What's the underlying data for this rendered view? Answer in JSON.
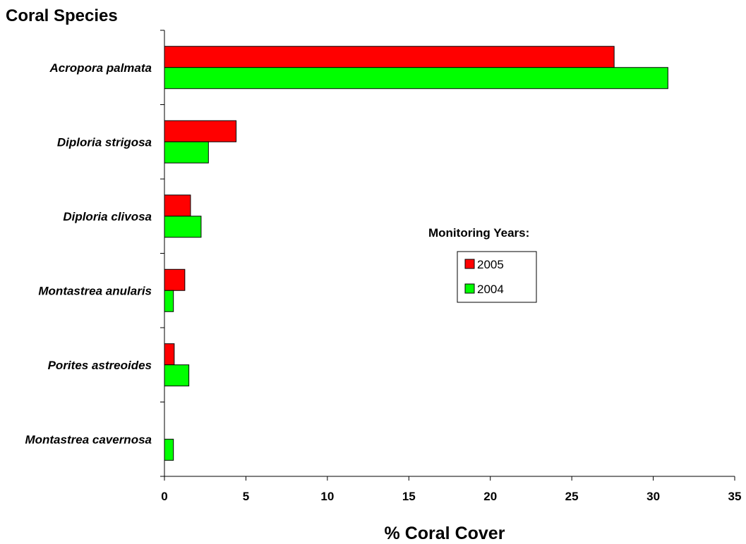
{
  "chart_data": {
    "type": "bar",
    "orientation": "horizontal",
    "ylabel": "Coral Species",
    "xlabel": "% Coral Cover",
    "categories": [
      "Acropora palmata",
      "Diploria strigosa",
      "Diploria clivosa",
      "Montastrea anularis",
      "Porites astreoides",
      "Montastrea cavernosa"
    ],
    "series": [
      {
        "name": "2005",
        "color": "#ff0000",
        "values": [
          27.6,
          4.4,
          1.6,
          1.25,
          0.6,
          0
        ]
      },
      {
        "name": "2004",
        "color": "#00ff00",
        "values": [
          30.9,
          2.7,
          2.25,
          0.55,
          1.5,
          0.55
        ]
      }
    ],
    "xlim": [
      0,
      35
    ],
    "xticks": [
      "0",
      "5",
      "10",
      "15",
      "20",
      "25",
      "30",
      "35"
    ],
    "grid": false,
    "legend": {
      "title": "Monitoring Years:",
      "placement": "right-center",
      "entries": [
        "2005",
        "2004"
      ]
    }
  }
}
